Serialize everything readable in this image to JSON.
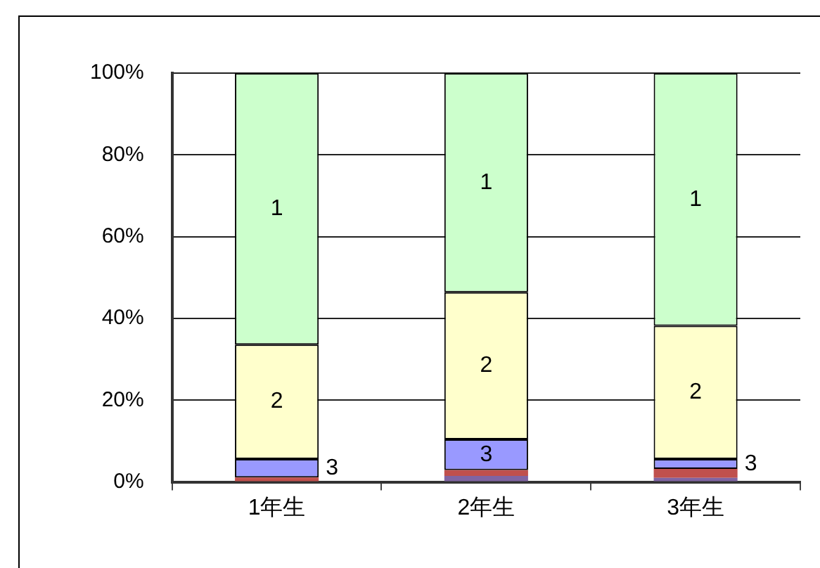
{
  "chart_data": {
    "type": "bar",
    "stacked": true,
    "categories": [
      "1年生",
      "2年生",
      "3年生"
    ],
    "series": [
      {
        "color": "#8064a2",
        "values": [
          0,
          1.5,
          1.0
        ]
      },
      {
        "color": "#c0504d",
        "values": [
          1.1,
          1.4,
          2.2
        ]
      },
      {
        "name": "3",
        "color": "#9999ff",
        "values": [
          4.5,
          7.5,
          2.4
        ]
      },
      {
        "name": "2",
        "color": "#ffffcc",
        "values": [
          28,
          36,
          32.6
        ]
      },
      {
        "name": "1",
        "color": "#ccffcc",
        "values": [
          66.4,
          53.6,
          61.8
        ]
      }
    ],
    "ylim": [
      0,
      100
    ],
    "yticks": [
      {
        "value": 0,
        "label": "0%"
      },
      {
        "value": 20,
        "label": "20%"
      },
      {
        "value": 40,
        "label": "40%"
      },
      {
        "value": 60,
        "label": "60%"
      },
      {
        "value": 80,
        "label": "80%"
      },
      {
        "value": 100,
        "label": "100%"
      }
    ],
    "grid": "y",
    "legend": false
  }
}
